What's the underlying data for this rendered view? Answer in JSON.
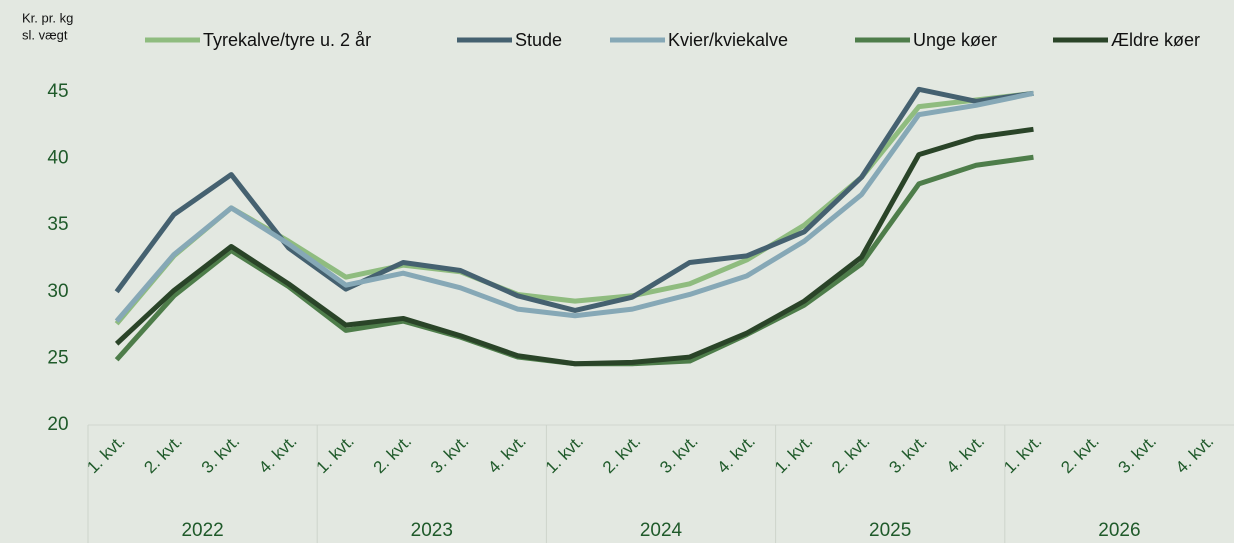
{
  "chart_data": {
    "type": "line",
    "y_axis_label": [
      "Kr. pr. kg",
      "sl. vægt"
    ],
    "categories": [
      "1. kvt.",
      "2. kvt.",
      "3. kvt.",
      "4. kvt.",
      "1. kvt.",
      "2. kvt.",
      "3. kvt.",
      "4. kvt.",
      "1. kvt.",
      "2. kvt.",
      "3. kvt.",
      "4. kvt.",
      "1. kvt.",
      "2. kvt.",
      "3. kvt.",
      "4. kvt.",
      "1. kvt.",
      "2. kvt.",
      "3. kvt.",
      "4. kvt."
    ],
    "years": [
      "2022",
      "2023",
      "2024",
      "2025",
      "2026"
    ],
    "series": [
      {
        "name": "Tyrekalve/tyre u. 2 år",
        "color": "#8fbc7f",
        "values": [
          27.6,
          32.7,
          36.3,
          33.8,
          31.1,
          32.0,
          31.5,
          29.8,
          29.3,
          29.7,
          30.6,
          32.4,
          35.0,
          38.6,
          43.9,
          44.4,
          44.9,
          null,
          null,
          null
        ]
      },
      {
        "name": "Stude",
        "color": "#456170",
        "values": [
          30.0,
          35.8,
          38.8,
          33.3,
          30.2,
          32.2,
          31.6,
          29.7,
          28.6,
          29.6,
          32.2,
          32.7,
          34.5,
          38.6,
          45.2,
          44.3,
          44.9,
          null,
          null,
          null
        ]
      },
      {
        "name": "Kvier/kviekalve",
        "color": "#86a8b6",
        "values": [
          27.8,
          32.8,
          36.3,
          33.6,
          30.5,
          31.4,
          30.3,
          28.7,
          28.2,
          28.7,
          29.8,
          31.2,
          33.8,
          37.3,
          43.3,
          44.0,
          44.9,
          null,
          null,
          null
        ]
      },
      {
        "name": "Unge køer",
        "color": "#4e7d4a",
        "values": [
          24.9,
          29.7,
          33.1,
          30.4,
          27.1,
          27.8,
          26.6,
          25.1,
          24.6,
          24.6,
          24.8,
          26.8,
          29.0,
          32.1,
          38.1,
          39.5,
          40.1,
          null,
          null,
          null
        ]
      },
      {
        "name": "Ældre køer",
        "color": "#2a4428",
        "values": [
          26.1,
          30.1,
          33.4,
          30.6,
          27.5,
          28.0,
          26.7,
          25.2,
          24.6,
          24.7,
          25.1,
          26.9,
          29.3,
          32.6,
          40.3,
          41.6,
          42.2,
          null,
          null,
          null
        ]
      }
    ],
    "ylim": [
      20,
      45
    ],
    "yticks": [
      20,
      25,
      30,
      35,
      40,
      45
    ],
    "grid": false
  }
}
